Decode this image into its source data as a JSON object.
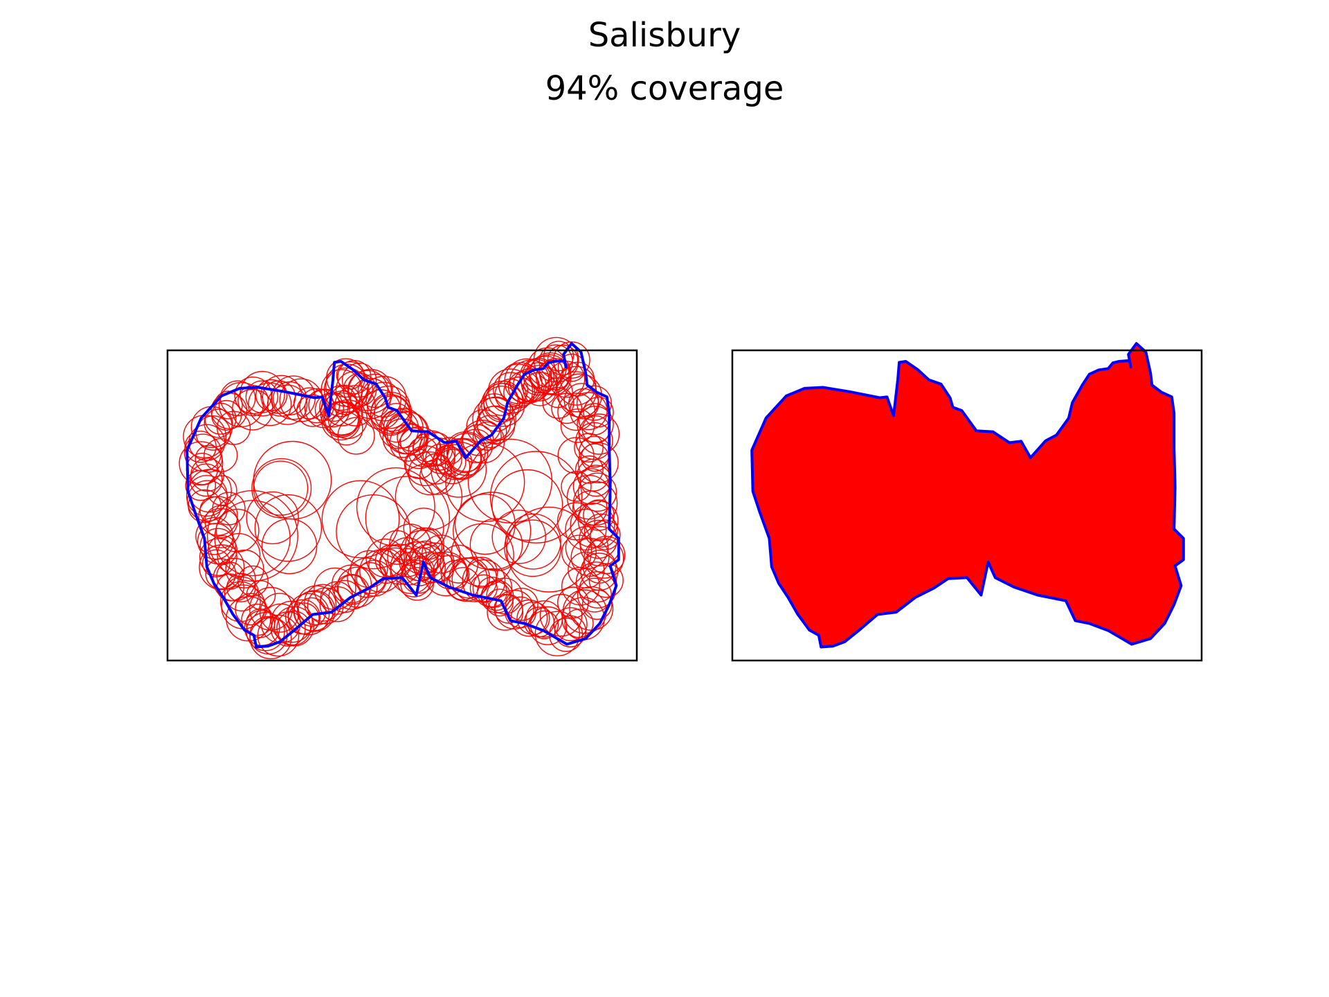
{
  "figure": {
    "title": "Salisbury",
    "subtitle": "94% coverage"
  },
  "colors": {
    "boundary": "#0000ff",
    "coverage": "#ff0000",
    "frame": "#000000"
  },
  "chart_data": [
    {
      "type": "scatter",
      "style": "circle-outlines",
      "title": "",
      "grid": false,
      "axes_ticks": false,
      "xlim": [
        0,
        100
      ],
      "ylim": [
        0,
        66
      ],
      "boundary": [
        [
          4.3,
          44.7
        ],
        [
          7.3,
          51.5
        ],
        [
          11.6,
          56.2
        ],
        [
          15.5,
          57.8
        ],
        [
          19.4,
          58.0
        ],
        [
          25.0,
          57.1
        ],
        [
          31.5,
          55.8
        ],
        [
          33.0,
          56.0
        ],
        [
          34.4,
          52.0
        ],
        [
          35.3,
          59.6
        ],
        [
          35.6,
          63.3
        ],
        [
          37.0,
          63.5
        ],
        [
          39.5,
          61.8
        ],
        [
          41.9,
          59.6
        ],
        [
          44.5,
          58.7
        ],
        [
          46.4,
          55.8
        ],
        [
          47.0,
          53.8
        ],
        [
          48.9,
          53.1
        ],
        [
          52.0,
          48.8
        ],
        [
          55.5,
          48.6
        ],
        [
          59.0,
          46.3
        ],
        [
          61.5,
          46.6
        ],
        [
          63.5,
          43.1
        ],
        [
          66.7,
          46.7
        ],
        [
          69.0,
          47.9
        ],
        [
          71.6,
          51.5
        ],
        [
          72.4,
          54.8
        ],
        [
          74.5,
          58.5
        ],
        [
          76.0,
          60.8
        ],
        [
          78.0,
          61.7
        ],
        [
          80.0,
          62.0
        ],
        [
          81.0,
          63.2
        ],
        [
          82.3,
          63.5
        ],
        [
          84.5,
          63.7
        ],
        [
          84.8,
          62.3
        ],
        [
          84.3,
          65.0
        ],
        [
          86.0,
          67.3
        ],
        [
          88.0,
          65.5
        ],
        [
          89.0,
          61.0
        ],
        [
          89.3,
          58.5
        ],
        [
          91.3,
          57.0
        ],
        [
          93.5,
          56.0
        ],
        [
          94.0,
          52.5
        ],
        [
          94.0,
          45.0
        ],
        [
          94.2,
          37.0
        ],
        [
          94.0,
          28.0
        ],
        [
          96.0,
          26.0
        ],
        [
          96.0,
          21.5
        ],
        [
          94.2,
          20.2
        ],
        [
          95.5,
          16.0
        ],
        [
          94.0,
          12.0
        ],
        [
          92.0,
          8.0
        ],
        [
          89.0,
          4.8
        ],
        [
          85.0,
          3.6
        ],
        [
          80.0,
          6.5
        ],
        [
          76.0,
          8.0
        ],
        [
          73.0,
          8.6
        ],
        [
          71.0,
          12.8
        ],
        [
          65.0,
          14.0
        ],
        [
          60.0,
          15.7
        ],
        [
          56.0,
          17.7
        ],
        [
          54.5,
          21.0
        ],
        [
          53.0,
          14.0
        ],
        [
          50.0,
          17.7
        ],
        [
          46.0,
          17.5
        ],
        [
          43.0,
          15.5
        ],
        [
          39.0,
          13.5
        ],
        [
          35.0,
          10.4
        ],
        [
          31.0,
          9.9
        ],
        [
          27.0,
          6.5
        ],
        [
          24.0,
          4.1
        ],
        [
          21.5,
          3.2
        ],
        [
          19.0,
          3.0
        ],
        [
          18.5,
          5.5
        ],
        [
          16.5,
          6.6
        ],
        [
          14.0,
          10.0
        ],
        [
          12.0,
          13.5
        ],
        [
          10.0,
          16.5
        ],
        [
          8.5,
          20.0
        ],
        [
          8.0,
          26.0
        ],
        [
          6.0,
          31.5
        ],
        [
          4.5,
          36.0
        ],
        [
          4.3,
          44.7
        ]
      ],
      "coverage_radius": 3.8
    },
    {
      "type": "area",
      "style": "filled-union",
      "title": "",
      "grid": false,
      "axes_ticks": false,
      "xlim": [
        0,
        100
      ],
      "ylim": [
        0,
        66
      ],
      "coverage_percent": 94
    }
  ]
}
